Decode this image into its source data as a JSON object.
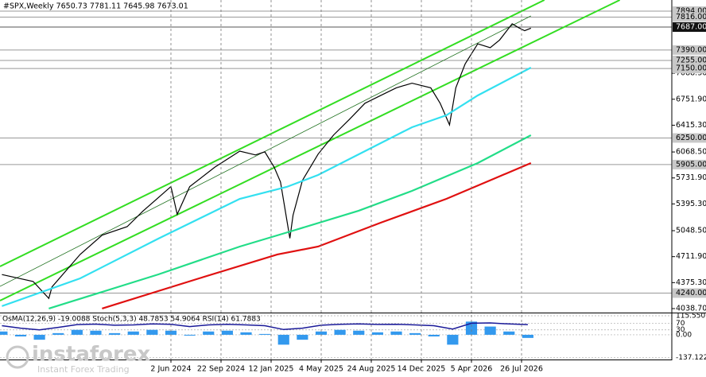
{
  "chart_data": {
    "type": "line",
    "title": "#SPX,Weekly  7650.73 7781.11 7645.98 7673.01",
    "xlim": [
      -54.6,
      160
    ],
    "xticks": [
      {
        "value": 0,
        "label": "2 Jun 2024"
      },
      {
        "value": 16,
        "label": "22 Sep 2024"
      },
      {
        "value": 32,
        "label": "12 Jan 2025"
      },
      {
        "value": 48,
        "label": "4 May 2025"
      },
      {
        "value": 64,
        "label": "24 Aug 2025"
      },
      {
        "value": 80,
        "label": "14 Dec 2025"
      },
      {
        "value": 96,
        "label": "5 Apr 2026"
      },
      {
        "value": 112,
        "label": "26 Jul 2026"
      }
    ],
    "ylim": [
      3987,
      8038
    ],
    "yticks": [
      {
        "value": 7088.3,
        "label": "7088.30"
      },
      {
        "value": 6751.9,
        "label": "6751.90"
      },
      {
        "value": 6415.3,
        "label": "6415.30"
      },
      {
        "value": 6068.5,
        "label": "6068.50"
      },
      {
        "value": 5731.9,
        "label": "5731.90"
      },
      {
        "value": 5395.3,
        "label": "5395.30"
      },
      {
        "value": 5048.5,
        "label": "5048.50"
      },
      {
        "value": 4711.9,
        "label": "4711.90"
      },
      {
        "value": 4375.3,
        "label": "4375.30"
      },
      {
        "value": 4038.7,
        "label": "4038.70"
      }
    ],
    "levels": [
      {
        "value": 7894,
        "label": "7894.00"
      },
      {
        "value": 7816,
        "label": "7816.00"
      },
      {
        "value": 7390,
        "label": "7390.00"
      },
      {
        "value": 7255,
        "label": "7255.00"
      },
      {
        "value": 7150,
        "label": "7150.00"
      },
      {
        "value": 6250,
        "label": "6250.00"
      },
      {
        "value": 5905,
        "label": "5905.00"
      },
      {
        "value": 4240,
        "label": "4240.00"
      }
    ],
    "price_level": {
      "value": 7687,
      "label": "7687.00"
    },
    "series": [
      {
        "color": "#000000",
        "x": [
          -54,
          -44,
          -39,
          -38,
          -29,
          -22,
          -14,
          -9,
          0,
          2,
          6,
          14,
          22,
          27,
          30,
          33,
          35,
          38,
          39,
          42,
          47,
          52,
          57,
          62,
          67,
          72,
          77,
          83,
          86,
          89,
          91,
          94,
          98,
          102,
          105,
          109,
          111,
          113,
          115
        ],
        "values": [
          4480,
          4390,
          4170,
          4320,
          4740,
          4990,
          5100,
          5300,
          5620,
          5260,
          5620,
          5870,
          6080,
          6030,
          6070,
          5870,
          5680,
          4950,
          5250,
          5700,
          6040,
          6290,
          6490,
          6700,
          6800,
          6900,
          6960,
          6900,
          6700,
          6420,
          6900,
          7210,
          7470,
          7420,
          7520,
          7730,
          7680,
          7640,
          7673
        ]
      },
      {
        "color": "#33e0f0",
        "x": [
          -54,
          -29,
          -4,
          22,
          37,
          47,
          62,
          77,
          88,
          98,
          115
        ],
        "values": [
          4070,
          4430,
          4946,
          5461,
          5616,
          5770,
          6080,
          6389,
          6544,
          6801,
          7162
        ]
      },
      {
        "color": "#22dd88",
        "x": [
          -39,
          -4,
          22,
          39,
          60,
          77,
          98,
          115
        ],
        "values": [
          4040,
          4482,
          4843,
          5049,
          5307,
          5564,
          5925,
          6286
        ]
      },
      {
        "color": "#e01010",
        "x": [
          -22,
          9,
          34,
          47,
          67,
          88,
          103,
          115
        ],
        "values": [
          4040,
          4430,
          4740,
          4843,
          5152,
          5461,
          5719,
          5925
        ]
      }
    ],
    "trend_lines": [
      {
        "color": "#33dd22",
        "x": [
          -54.6,
          119.3
        ],
        "values": [
          4585,
          8038
        ]
      },
      {
        "color": "#33dd22",
        "x": [
          -54.6,
          143.4
        ],
        "values": [
          4142,
          8038
        ]
      },
      {
        "color": "#1a6e1a",
        "x": [
          -54.6,
          115
        ],
        "values": [
          4327,
          7832
        ]
      }
    ],
    "oscillator": {
      "title": "OsMA(12,26,9) -19.0088 Stoch(5,3,3) 48.7853 54.9064 RSI(14) 61.7883",
      "ylim": [
        -150,
        130
      ],
      "yticks": [
        115.5501,
        70,
        {
          "value": 0,
          "label": "0.00"
        },
        30,
        {
          "value": -137.1221,
          "label": "-137.1221"
        }
      ],
      "x": [
        -54,
        -48,
        -42,
        -36,
        -30,
        -24,
        -18,
        -12,
        -6,
        0,
        6,
        12,
        18,
        24,
        30,
        36,
        42,
        48,
        54,
        60,
        66,
        72,
        78,
        84,
        90,
        96,
        102,
        108,
        114
      ],
      "osma": {
        "color": "#3399ee",
        "values": [
          20,
          -10,
          -30,
          10,
          30,
          25,
          10,
          20,
          30,
          25,
          -5,
          20,
          25,
          15,
          5,
          -60,
          -30,
          20,
          30,
          25,
          15,
          20,
          10,
          -10,
          -60,
          80,
          50,
          20,
          -19.0088
        ]
      },
      "rsi": {
        "color": "#1a1a99",
        "values": [
          55,
          40,
          30,
          45,
          62,
          65,
          58,
          60,
          66,
          64,
          50,
          60,
          64,
          60,
          55,
          32,
          40,
          58,
          64,
          66,
          63,
          64,
          60,
          55,
          35,
          70,
          72,
          66,
          61.7883
        ]
      }
    },
    "watermark": {
      "brand": "instaforex",
      "tagline": "Instant Forex Trading"
    }
  }
}
